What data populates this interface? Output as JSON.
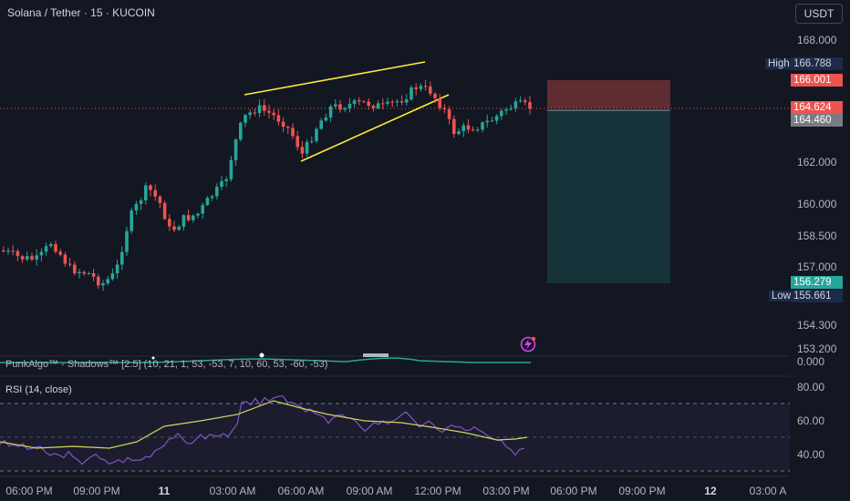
{
  "header": {
    "title": "Solana / Tether · 15 · KUCOIN",
    "currency_label": "USDT"
  },
  "price_axis": {
    "ticks": [
      "168.000",
      "162.000",
      "160.000",
      "158.500",
      "157.000",
      "154.300",
      "153.200"
    ]
  },
  "price_tags": {
    "high_label": "High",
    "high_value": "166.788",
    "stop_value": "166.001",
    "last_value": "164.624",
    "entry_value": "164.460",
    "target_value": "156.279",
    "low_label": "Low",
    "low_value": "155.661"
  },
  "indicators": {
    "punkalgo_label": "PunkAlgo™ - Shadows™ [2.5] (10, 21, 1, 53, -53, 7, 10, 60, 53, -60, -53)",
    "punkalgo_value": "0.000",
    "rsi_label": "RSI (14, close)",
    "rsi_ticks": [
      "80.00",
      "60.00",
      "40.00"
    ]
  },
  "time_axis": {
    "ticks": [
      "06:00 PM",
      "09:00 PM",
      "11",
      "03:00 AM",
      "06:00 AM",
      "09:00 AM",
      "12:00 PM",
      "03:00 PM",
      "06:00 PM",
      "09:00 PM",
      "12",
      "03:00 A"
    ]
  },
  "colors": {
    "up": "#26a69a",
    "down": "#ef5350",
    "trendline": "#ffeb3b",
    "rsi": "#7e57c2",
    "rsi_ma": "#d4d45a"
  }
}
